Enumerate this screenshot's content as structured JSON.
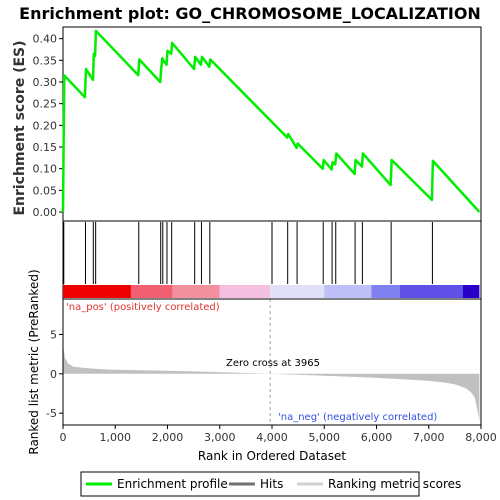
{
  "title": "Enrichment plot: GO_CHROMOSOME_LOCALIZATION",
  "colors": {
    "es_line": "#00ee00",
    "hit_line": "#000000",
    "pos_text": "#e03030",
    "neg_text": "#3050e0",
    "metric_fill": "#c0c0c0",
    "zero_line": "#a0a0a0",
    "legend_hits": "#707070",
    "legend_metric": "#d0d0d0"
  },
  "annotations": {
    "na_pos": "'na_pos' (positively correlated)",
    "na_neg": "'na_neg' (negatively correlated)",
    "zero_cross": "Zero cross at 3965"
  },
  "legend": {
    "enrichment": "Enrichment profile",
    "hits": "Hits",
    "ranking": "Ranking metric scores"
  },
  "chart_data": [
    {
      "type": "line",
      "name": "enrichment",
      "ylabel": "Enrichment score (ES)",
      "xlim": [
        0,
        8000
      ],
      "ylim": [
        0,
        0.42
      ],
      "yticks": [
        0.0,
        0.05,
        0.1,
        0.15,
        0.2,
        0.25,
        0.3,
        0.35,
        0.4
      ],
      "ytick_labels": [
        "0.00",
        "0.05",
        "0.10",
        "0.15",
        "0.20",
        "0.25",
        "0.30",
        "0.35",
        "0.40"
      ],
      "grid": false,
      "series": [
        {
          "x": [
            0,
            8,
            25,
            420,
            440,
            575,
            590,
            615,
            630,
            1440,
            1460,
            1860,
            1880,
            1900,
            1920,
            1980,
            2000,
            2070,
            2090,
            2510,
            2530,
            2640,
            2660,
            2800,
            2820,
            4290,
            4310,
            4470,
            4490,
            4970,
            4990,
            5140,
            5160,
            5210,
            5230,
            5580,
            5600,
            5720,
            5740,
            6270,
            6290,
            7060,
            7080,
            7970
          ],
          "y": [
            0.0,
            0.1,
            0.315,
            0.265,
            0.33,
            0.305,
            0.365,
            0.36,
            0.418,
            0.316,
            0.352,
            0.3,
            0.33,
            0.355,
            0.35,
            0.34,
            0.372,
            0.365,
            0.39,
            0.33,
            0.358,
            0.34,
            0.358,
            0.335,
            0.352,
            0.172,
            0.18,
            0.148,
            0.158,
            0.1,
            0.12,
            0.098,
            0.115,
            0.11,
            0.135,
            0.088,
            0.12,
            0.105,
            0.135,
            0.062,
            0.12,
            0.028,
            0.118,
            0.0
          ]
        }
      ]
    },
    {
      "type": "hits",
      "name": "hits",
      "xlim": [
        0,
        8000
      ],
      "positions": [
        15,
        430,
        580,
        625,
        1450,
        1870,
        1910,
        1990,
        2080,
        2520,
        2650,
        2810,
        4000,
        4300,
        4480,
        4980,
        5150,
        5220,
        5590,
        5730,
        6280,
        7070
      ]
    },
    {
      "type": "heatmap",
      "name": "rank_colorbar",
      "xlim": [
        0,
        8000
      ],
      "segments": [
        {
          "from": 0,
          "to": 1300,
          "color": "#ee0000"
        },
        {
          "from": 1300,
          "to": 2100,
          "color": "#f06070"
        },
        {
          "from": 2100,
          "to": 3000,
          "color": "#f290a0"
        },
        {
          "from": 3000,
          "to": 3965,
          "color": "#f5c0e0"
        },
        {
          "from": 3965,
          "to": 5000,
          "color": "#e0e0f8"
        },
        {
          "from": 5000,
          "to": 5900,
          "color": "#c0c0f8"
        },
        {
          "from": 5900,
          "to": 6450,
          "color": "#8080f0"
        },
        {
          "from": 6450,
          "to": 7650,
          "color": "#6050e8"
        },
        {
          "from": 7650,
          "to": 7970,
          "color": "#2800c8"
        }
      ]
    },
    {
      "type": "area",
      "name": "ranked_metric",
      "xlabel": "Rank in Ordered Dataset",
      "ylabel": "Ranked list metric (PreRanked)",
      "xlim": [
        0,
        8000
      ],
      "ylim": [
        -6.5,
        9.5
      ],
      "xticks": [
        0,
        1000,
        2000,
        3000,
        4000,
        5000,
        6000,
        7000,
        8000
      ],
      "xtick_labels": [
        "0",
        "1,000",
        "2,000",
        "3,000",
        "4,000",
        "5,000",
        "6,000",
        "7,000",
        "8,000"
      ],
      "yticks": [
        -5,
        0,
        5
      ],
      "ytick_labels": [
        "-5",
        "0",
        "5"
      ],
      "zero_cross": 3965,
      "x": [
        0,
        10,
        40,
        100,
        200,
        400,
        700,
        1000,
        1500,
        2000,
        2500,
        3000,
        3500,
        3965,
        4500,
        5000,
        5500,
        6000,
        6500,
        7000,
        7300,
        7500,
        7700,
        7800,
        7880,
        7930,
        7970
      ],
      "y": [
        4.0,
        3.2,
        2.0,
        1.3,
        0.9,
        0.75,
        0.6,
        0.52,
        0.45,
        0.38,
        0.3,
        0.22,
        0.1,
        0.0,
        -0.12,
        -0.25,
        -0.38,
        -0.52,
        -0.7,
        -0.9,
        -1.1,
        -1.35,
        -1.8,
        -2.3,
        -3.0,
        -4.5,
        -6.0
      ]
    }
  ]
}
